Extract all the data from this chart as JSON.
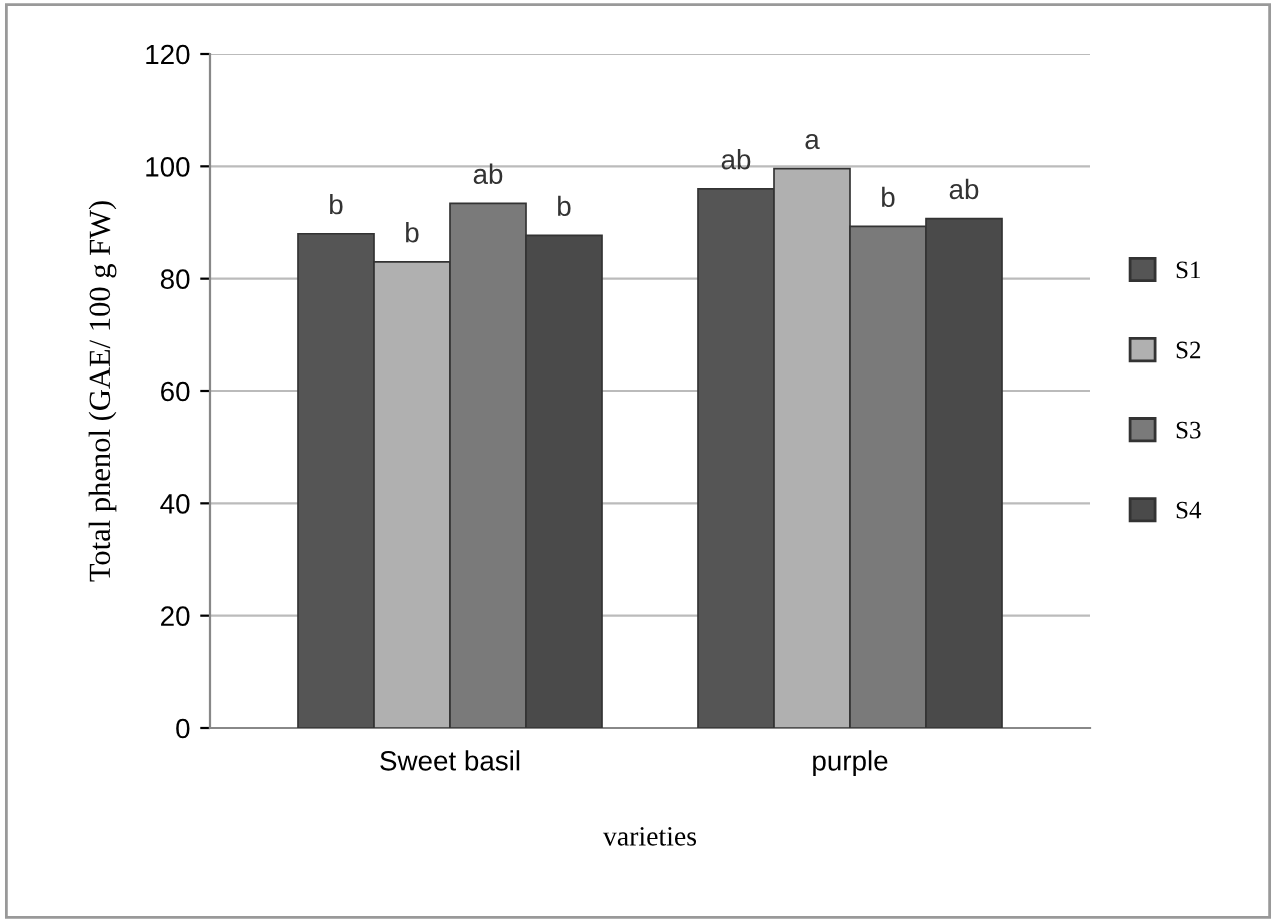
{
  "chart_data": {
    "type": "bar",
    "xlabel": "varieties",
    "ylabel": "Total phenol (GAE/ 100 g FW)",
    "categories": [
      "Sweet basil",
      "purple"
    ],
    "series": [
      {
        "name": "S1",
        "color": "#555555",
        "values": [
          88,
          96
        ],
        "value_labels": [
          "b",
          "ab"
        ]
      },
      {
        "name": "S2",
        "color": "#b0b0b0",
        "values": [
          83,
          99.6
        ],
        "value_labels": [
          "b",
          "a"
        ]
      },
      {
        "name": "S3",
        "color": "#7a7a7a",
        "values": [
          93.4,
          89.3
        ],
        "value_labels": [
          "ab",
          "b"
        ]
      },
      {
        "name": "S4",
        "color": "#4a4a4a",
        "values": [
          87.7,
          90.7
        ],
        "value_labels": [
          "b",
          "ab"
        ]
      }
    ],
    "ylim": [
      0,
      120
    ],
    "yticks": [
      0,
      20,
      40,
      60,
      80,
      100,
      120
    ],
    "grid": "y",
    "legend": "right"
  }
}
